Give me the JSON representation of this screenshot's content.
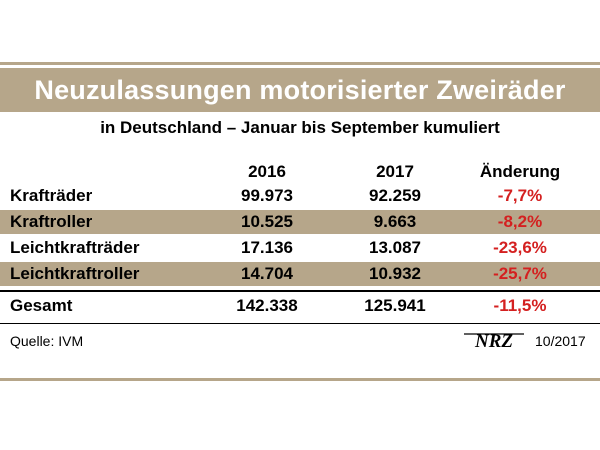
{
  "title": "Neuzulassungen motorisierter Zweiräder",
  "subtitle": "in Deutschland – Januar bis September kumuliert",
  "table": {
    "columns": [
      "2016",
      "2017",
      "Änderung"
    ],
    "rows": [
      {
        "label": "Krafträder",
        "v2016": "99.973",
        "v2017": "92.259",
        "change": "-7,7%"
      },
      {
        "label": "Kraftroller",
        "v2016": "10.525",
        "v2017": "9.663",
        "change": "-8,2%"
      },
      {
        "label": "Leichtkrafträder",
        "v2016": "17.136",
        "v2017": "13.087",
        "change": "-23,6%"
      },
      {
        "label": "Leichtkraftroller",
        "v2016": "14.704",
        "v2017": "10.932",
        "change": "-25,7%"
      }
    ],
    "total": {
      "label": "Gesamt",
      "v2016": "142.338",
      "v2017": "125.941",
      "change": "-11,5%"
    }
  },
  "footer": {
    "source": "Quelle: IVM",
    "logo": "NRZ",
    "date": "10/2017"
  },
  "colors": {
    "band": "#b6a68a",
    "negative": "#d42020"
  }
}
